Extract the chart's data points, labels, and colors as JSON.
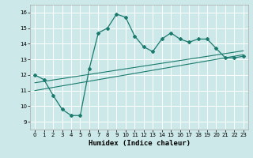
{
  "xlabel": "Humidex (Indice chaleur)",
  "bg_color": "#cce8e8",
  "grid_color": "#ffffff",
  "line_color": "#1a7a6e",
  "x_ticks": [
    0,
    1,
    2,
    3,
    4,
    5,
    6,
    7,
    8,
    9,
    10,
    11,
    12,
    13,
    14,
    15,
    16,
    17,
    18,
    19,
    20,
    21,
    22,
    23
  ],
  "ylim": [
    8.5,
    16.5
  ],
  "xlim": [
    -0.5,
    23.5
  ],
  "y_ticks": [
    9,
    10,
    11,
    12,
    13,
    14,
    15,
    16
  ],
  "main_line_x": [
    0,
    1,
    2,
    3,
    4,
    5,
    6,
    7,
    8,
    9,
    10,
    11,
    12,
    13,
    14,
    15,
    16,
    17,
    18,
    19,
    20,
    21,
    22,
    23
  ],
  "main_line_y": [
    12.0,
    11.7,
    10.7,
    9.8,
    9.4,
    9.4,
    12.4,
    14.7,
    15.0,
    15.9,
    15.7,
    14.5,
    13.8,
    13.5,
    14.3,
    14.7,
    14.3,
    14.1,
    14.3,
    14.3,
    13.7,
    13.1,
    13.1,
    13.2
  ],
  "trend_line1_x": [
    0,
    23
  ],
  "trend_line1_y": [
    11.0,
    13.3
  ],
  "trend_line2_x": [
    0,
    23
  ],
  "trend_line2_y": [
    11.5,
    13.55
  ]
}
